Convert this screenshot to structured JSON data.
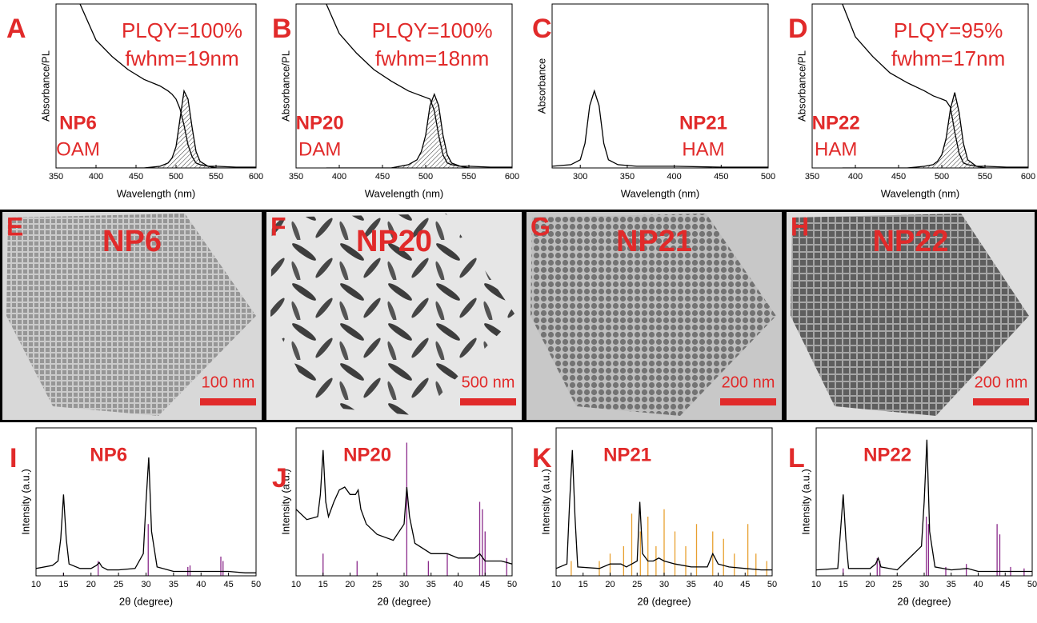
{
  "chart_data": [
    {
      "type": "line",
      "panel_label": "A",
      "xlabel": "Wavelength (nm)",
      "ylabel": "Absorbance/PL",
      "xlim": [
        350,
        600
      ],
      "ylim": [
        0,
        1
      ],
      "xticks": [
        350,
        400,
        450,
        500,
        550,
        600
      ],
      "annotations": [
        "PLQY=100%",
        "fwhm=19nm",
        "NP6",
        "OAM"
      ],
      "series": [
        {
          "kind": "line",
          "color": "#000000",
          "x": [
            380,
            400,
            420,
            440,
            460,
            480,
            490,
            495,
            500,
            505,
            510,
            515,
            520,
            525,
            530,
            540,
            550,
            575,
            600
          ],
          "values": [
            1.0,
            0.78,
            0.68,
            0.6,
            0.54,
            0.5,
            0.47,
            0.45,
            0.42,
            0.36,
            0.26,
            0.14,
            0.07,
            0.03,
            0.02,
            0.01,
            0.01,
            0.005,
            0.005
          ]
        },
        {
          "kind": "area",
          "color": "#000000",
          "x": [
            380,
            400,
            420,
            440,
            460,
            480,
            490,
            495,
            500,
            505,
            510,
            515,
            520,
            525,
            530,
            540,
            550,
            575,
            600
          ],
          "values": [
            0,
            0,
            0,
            0,
            0,
            0.01,
            0.03,
            0.06,
            0.13,
            0.3,
            0.47,
            0.42,
            0.25,
            0.1,
            0.04,
            0.01,
            0,
            0,
            0
          ]
        }
      ]
    },
    {
      "type": "line",
      "panel_label": "B",
      "xlabel": "Wavelength (nm)",
      "ylabel": "Absorbance/PL",
      "xlim": [
        350,
        600
      ],
      "ylim": [
        0,
        1
      ],
      "xticks": [
        350,
        400,
        450,
        500,
        550,
        600
      ],
      "annotations": [
        "PLQY=100%",
        "fwhm=18nm",
        "NP20",
        "DAM"
      ],
      "series": [
        {
          "kind": "line",
          "color": "#000000",
          "x": [
            385,
            400,
            420,
            440,
            460,
            480,
            490,
            495,
            500,
            505,
            510,
            515,
            520,
            525,
            530,
            540,
            550,
            575,
            600
          ],
          "values": [
            1.0,
            0.82,
            0.7,
            0.6,
            0.53,
            0.47,
            0.45,
            0.44,
            0.43,
            0.42,
            0.35,
            0.2,
            0.08,
            0.03,
            0.02,
            0.01,
            0.01,
            0.005,
            0.005
          ]
        },
        {
          "kind": "area",
          "color": "#000000",
          "x": [
            385,
            400,
            420,
            440,
            460,
            480,
            490,
            495,
            500,
            505,
            510,
            515,
            520,
            525,
            530,
            540,
            550,
            575,
            600
          ],
          "values": [
            0,
            0,
            0,
            0,
            0,
            0.02,
            0.05,
            0.1,
            0.2,
            0.38,
            0.45,
            0.38,
            0.2,
            0.08,
            0.03,
            0.01,
            0,
            0,
            0
          ]
        }
      ]
    },
    {
      "type": "line",
      "panel_label": "C",
      "xlabel": "Wavelength (nm)",
      "ylabel": "Absorbance",
      "xlim": [
        270,
        500
      ],
      "ylim": [
        0,
        1
      ],
      "xticks": [
        300,
        350,
        400,
        450,
        500
      ],
      "annotations": [
        "NP21",
        "HAM"
      ],
      "series": [
        {
          "kind": "line",
          "color": "#000000",
          "x": [
            270,
            290,
            300,
            305,
            310,
            315,
            320,
            325,
            330,
            340,
            360,
            400,
            450,
            500
          ],
          "values": [
            0.01,
            0.02,
            0.05,
            0.15,
            0.38,
            0.47,
            0.38,
            0.15,
            0.05,
            0.02,
            0.01,
            0.01,
            0.005,
            0.005
          ]
        }
      ]
    },
    {
      "type": "line",
      "panel_label": "D",
      "xlabel": "Wavelength (nm)",
      "ylabel": "Absorbance/PL",
      "xlim": [
        350,
        600
      ],
      "ylim": [
        0,
        1
      ],
      "xticks": [
        350,
        400,
        450,
        500,
        550,
        600
      ],
      "annotations": [
        "PLQY=95%",
        "fwhm=17nm",
        "NP22",
        "HAM"
      ],
      "series": [
        {
          "kind": "line",
          "color": "#000000",
          "x": [
            385,
            400,
            420,
            440,
            460,
            480,
            490,
            495,
            500,
            505,
            510,
            515,
            520,
            525,
            530,
            540,
            550,
            575,
            600
          ],
          "values": [
            1.0,
            0.8,
            0.68,
            0.58,
            0.52,
            0.47,
            0.44,
            0.43,
            0.42,
            0.41,
            0.37,
            0.22,
            0.09,
            0.03,
            0.02,
            0.01,
            0.01,
            0.005,
            0.005
          ]
        },
        {
          "kind": "area",
          "color": "#000000",
          "x": [
            385,
            400,
            420,
            440,
            460,
            480,
            490,
            495,
            500,
            505,
            510,
            515,
            520,
            525,
            530,
            540,
            550,
            575,
            600
          ],
          "values": [
            0,
            0,
            0,
            0,
            0,
            0.01,
            0.02,
            0.04,
            0.08,
            0.18,
            0.36,
            0.46,
            0.34,
            0.15,
            0.05,
            0.01,
            0,
            0,
            0
          ]
        }
      ]
    },
    {
      "type": "line",
      "panel_label": "I",
      "xlabel": "2θ (degree)",
      "ylabel": "Intensity (a.u.)",
      "xlim": [
        10,
        50
      ],
      "ylim": [
        0,
        1
      ],
      "xticks": [
        10,
        15,
        20,
        25,
        30,
        35,
        40,
        45,
        50
      ],
      "annotations": [
        "NP6"
      ],
      "series": [
        {
          "kind": "stick",
          "color": "#8b2a8b",
          "x": [
            15.0,
            21.3,
            30.4,
            37.6,
            38.0,
            43.6,
            44.0
          ],
          "values": [
            0.02,
            0.1,
            0.35,
            0.06,
            0.07,
            0.13,
            0.1
          ]
        },
        {
          "kind": "line",
          "color": "#000000",
          "x": [
            10,
            13,
            14,
            14.5,
            15,
            15.5,
            16,
            18,
            20,
            21,
            21.5,
            22,
            23,
            25,
            28,
            29.5,
            30,
            30.5,
            31,
            32,
            35,
            38,
            40,
            43,
            45,
            48,
            50
          ],
          "values": [
            0.05,
            0.07,
            0.1,
            0.25,
            0.55,
            0.25,
            0.08,
            0.05,
            0.05,
            0.07,
            0.09,
            0.06,
            0.04,
            0.04,
            0.05,
            0.15,
            0.5,
            0.8,
            0.3,
            0.06,
            0.03,
            0.03,
            0.03,
            0.03,
            0.03,
            0.02,
            0.02
          ]
        }
      ]
    },
    {
      "type": "line",
      "panel_label": "J",
      "xlabel": "2θ (degree)",
      "ylabel": "Intensity (a.u.)",
      "xlim": [
        10,
        50
      ],
      "ylim": [
        0,
        1
      ],
      "xticks": [
        10,
        15,
        20,
        25,
        30,
        35,
        40,
        45,
        50
      ],
      "annotations": [
        "NP20"
      ],
      "series": [
        {
          "kind": "stick",
          "color": "#8b2a8b",
          "x": [
            15.0,
            21.3,
            30.5,
            34.5,
            38.0,
            44.0,
            44.5,
            45.0,
            49.0
          ],
          "values": [
            0.15,
            0.1,
            0.9,
            0.1,
            0.15,
            0.5,
            0.45,
            0.3,
            0.12
          ]
        },
        {
          "kind": "line",
          "color": "#000000",
          "x": [
            10,
            12,
            14,
            14.5,
            15,
            15.5,
            16,
            17,
            18,
            19,
            20,
            21,
            21.5,
            22,
            23,
            25,
            28,
            30,
            30.5,
            31,
            32,
            35,
            38,
            40,
            43,
            44,
            45,
            48,
            50
          ],
          "values": [
            0.45,
            0.38,
            0.4,
            0.55,
            0.85,
            0.5,
            0.4,
            0.5,
            0.58,
            0.6,
            0.55,
            0.55,
            0.58,
            0.45,
            0.35,
            0.28,
            0.24,
            0.35,
            0.6,
            0.4,
            0.22,
            0.15,
            0.15,
            0.12,
            0.12,
            0.15,
            0.1,
            0.1,
            0.08
          ]
        }
      ]
    },
    {
      "type": "line",
      "panel_label": "K",
      "xlabel": "2θ (degree)",
      "ylabel": "Intensity (a.u.)",
      "xlim": [
        10,
        50
      ],
      "ylim": [
        0,
        1
      ],
      "xticks": [
        10,
        15,
        20,
        25,
        30,
        35,
        40,
        45,
        50
      ],
      "annotations": [
        "NP21"
      ],
      "series": [
        {
          "kind": "stick",
          "color": "#e8a030",
          "x": [
            12.8,
            18,
            20,
            22.5,
            24,
            25.6,
            27,
            28.5,
            30,
            32,
            34,
            36,
            39,
            41,
            43,
            45.5,
            47,
            49
          ],
          "values": [
            0.1,
            0.1,
            0.15,
            0.2,
            0.42,
            0.3,
            0.4,
            0.2,
            0.45,
            0.3,
            0.2,
            0.35,
            0.3,
            0.25,
            0.15,
            0.35,
            0.15,
            0.1
          ]
        },
        {
          "kind": "line",
          "color": "#000000",
          "x": [
            10,
            12,
            12.5,
            13,
            13.5,
            14,
            18,
            20,
            22,
            23,
            25,
            25.5,
            26,
            27,
            28,
            29,
            30,
            32,
            35,
            38,
            39,
            40,
            42,
            45,
            48,
            50
          ],
          "values": [
            0.05,
            0.08,
            0.5,
            0.85,
            0.4,
            0.06,
            0.05,
            0.08,
            0.08,
            0.06,
            0.1,
            0.5,
            0.15,
            0.1,
            0.1,
            0.12,
            0.1,
            0.08,
            0.06,
            0.06,
            0.15,
            0.08,
            0.06,
            0.05,
            0.04,
            0.04
          ]
        }
      ]
    },
    {
      "type": "line",
      "panel_label": "L",
      "xlabel": "2θ (degree)",
      "ylabel": "Intensity (a.u.)",
      "xlim": [
        10,
        50
      ],
      "ylim": [
        0,
        1
      ],
      "xticks": [
        10,
        15,
        20,
        25,
        30,
        35,
        40,
        45,
        50
      ],
      "annotations": [
        "NP22"
      ],
      "series": [
        {
          "kind": "stick",
          "color": "#8b2a8b",
          "x": [
            15,
            21.3,
            21.8,
            30.4,
            30.8,
            34,
            37.8,
            43.5,
            44,
            46,
            48.5
          ],
          "values": [
            0.05,
            0.12,
            0.1,
            0.4,
            0.35,
            0.06,
            0.08,
            0.35,
            0.28,
            0.06,
            0.05
          ]
        },
        {
          "kind": "line",
          "color": "#000000",
          "x": [
            10,
            14,
            14.5,
            15,
            15.5,
            16,
            20,
            21,
            21.5,
            22,
            25,
            29.5,
            30,
            30.5,
            31,
            32,
            35,
            38,
            40,
            43,
            45,
            48,
            50
          ],
          "values": [
            0.04,
            0.05,
            0.3,
            0.55,
            0.25,
            0.05,
            0.05,
            0.08,
            0.12,
            0.06,
            0.04,
            0.2,
            0.5,
            0.92,
            0.3,
            0.06,
            0.04,
            0.05,
            0.03,
            0.03,
            0.03,
            0.03,
            0.03
          ]
        }
      ]
    }
  ],
  "images": [
    {
      "label": "E",
      "name": "NP6",
      "scale_bar": "100 nm"
    },
    {
      "label": "F",
      "name": "NP20",
      "scale_bar": "500 nm"
    },
    {
      "label": "G",
      "name": "NP21",
      "scale_bar": "200 nm"
    },
    {
      "label": "H",
      "name": "NP22",
      "scale_bar": "200 nm"
    }
  ]
}
